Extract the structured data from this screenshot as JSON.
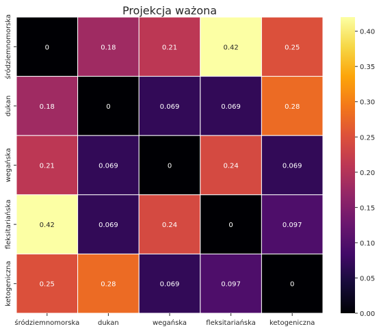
{
  "chart_data": {
    "type": "heatmap",
    "title": "Projekcja ważona",
    "x_labels": [
      "śródziemnomorska",
      "dukan",
      "wegańska",
      "fleksitariańska",
      "ketogeniczna"
    ],
    "y_labels": [
      "śródziemnomorska",
      "dukan",
      "wegańska",
      "fleksitariańska",
      "ketogeniczna"
    ],
    "values": [
      [
        0,
        0.18,
        0.21,
        0.42,
        0.25
      ],
      [
        0.18,
        0,
        0.069,
        0.069,
        0.28
      ],
      [
        0.21,
        0.069,
        0,
        0.24,
        0.069
      ],
      [
        0.42,
        0.069,
        0.24,
        0,
        0.097
      ],
      [
        0.25,
        0.28,
        0.069,
        0.097,
        0
      ]
    ],
    "cell_text": [
      [
        "0",
        "0.18",
        "0.21",
        "0.42",
        "0.25"
      ],
      [
        "0.18",
        "0",
        "0.069",
        "0.069",
        "0.28"
      ],
      [
        "0.21",
        "0.069",
        "0",
        "0.24",
        "0.069"
      ],
      [
        "0.42",
        "0.069",
        "0.24",
        "0",
        "0.097"
      ],
      [
        "0.25",
        "0.28",
        "0.069",
        "0.097",
        "0"
      ]
    ],
    "colormap": "inferno",
    "vmin": 0,
    "vmax": 0.42,
    "colorbar_ticks": [
      "0.00",
      "0.05",
      "0.10",
      "0.15",
      "0.20",
      "0.25",
      "0.30",
      "0.35",
      "0.40"
    ],
    "colorbar_tick_values": [
      0,
      0.05,
      0.1,
      0.15,
      0.2,
      0.25,
      0.3,
      0.35,
      0.4
    ],
    "grid_line_color": "#ffffff"
  }
}
